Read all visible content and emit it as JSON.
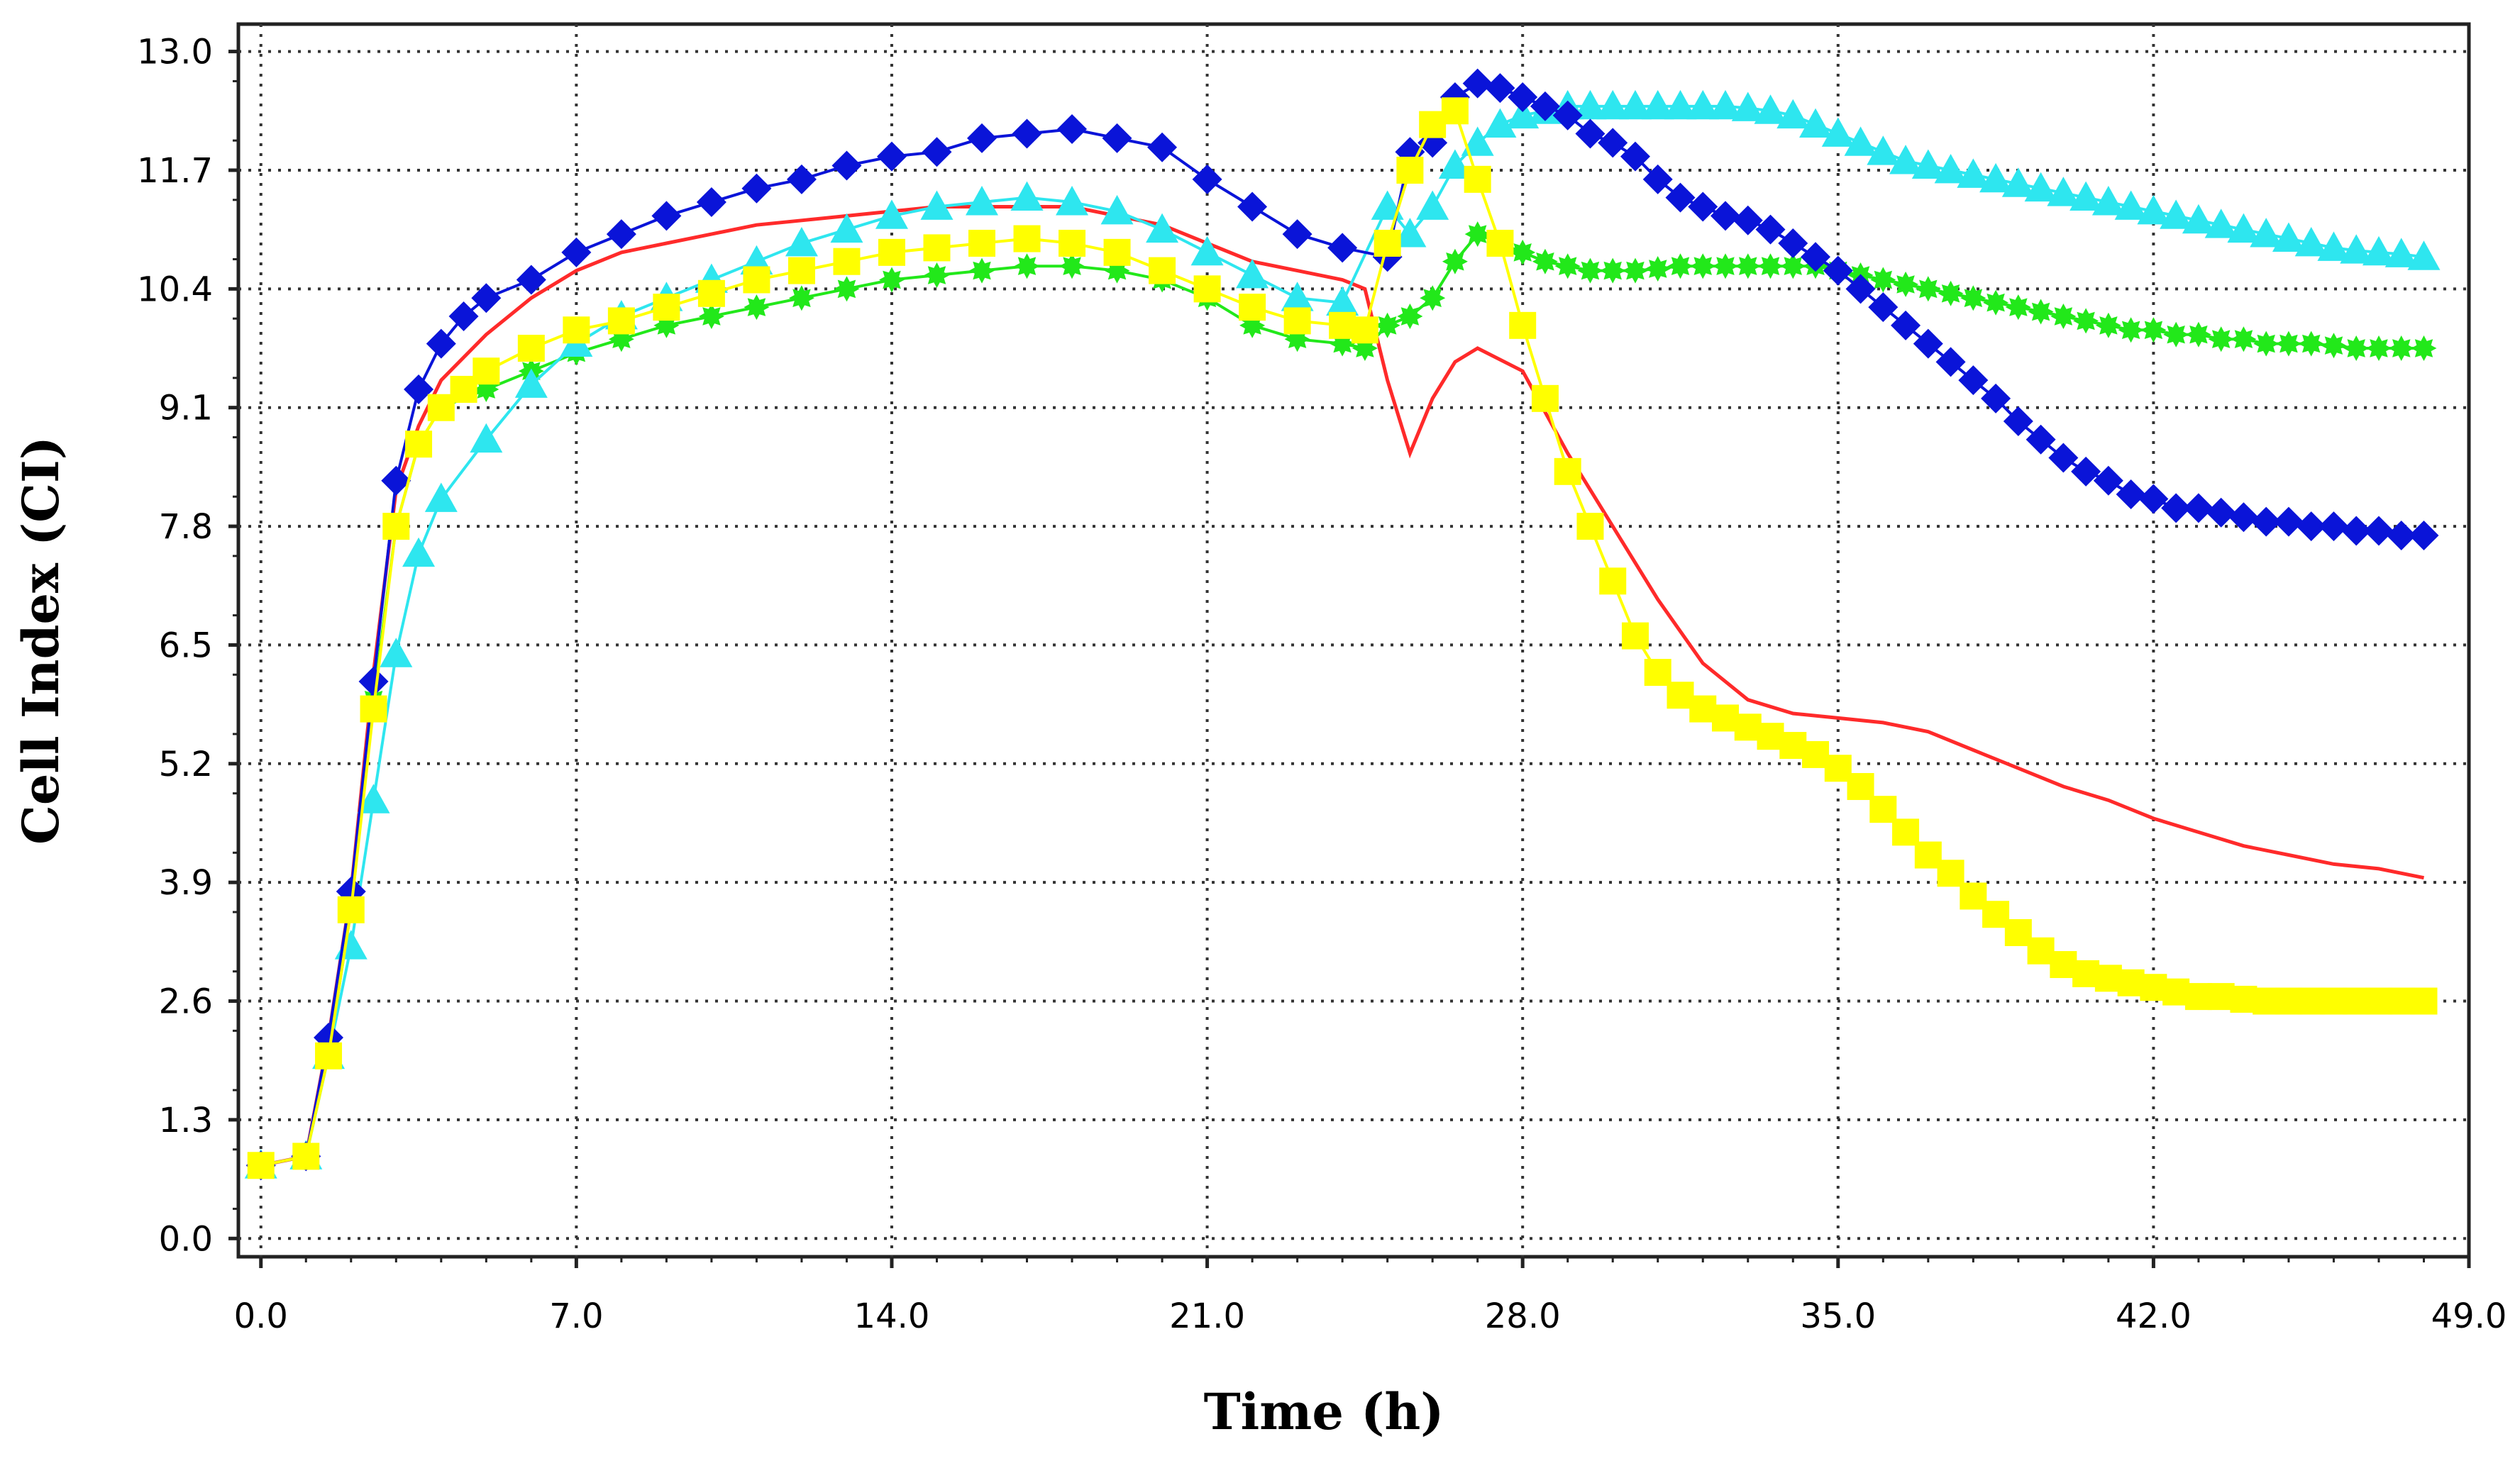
{
  "chart_data": {
    "type": "line",
    "title": "",
    "xlabel": "Time (h)",
    "ylabel": "Cell Index (CI)",
    "xlim": [
      -0.5,
      49.0
    ],
    "ylim": [
      -0.2,
      13.3
    ],
    "xticks": [
      0.0,
      7.0,
      14.0,
      21.0,
      28.0,
      35.0,
      42.0,
      49.0
    ],
    "xtick_labels": [
      "0.0",
      "7.0",
      "14.0",
      "21.0",
      "28.0",
      "35.0",
      "42.0",
      "49.0"
    ],
    "yticks": [
      0.0,
      1.3,
      2.6,
      3.9,
      5.2,
      6.5,
      7.8,
      9.1,
      10.4,
      11.7,
      13.0
    ],
    "ytick_labels": [
      "0.0",
      "1.3",
      "2.6",
      "3.9",
      "5.2",
      "6.5",
      "7.8",
      "9.1",
      "10.4",
      "11.7",
      "13.0"
    ],
    "grid": true,
    "legend": "none",
    "series": [
      {
        "name": "red",
        "color": "#ff2a2a",
        "marker": "none",
        "x": [
          0.0,
          1.0,
          1.5,
          2.0,
          2.5,
          3.0,
          3.5,
          4.0,
          5.0,
          6.0,
          7.0,
          8.0,
          9.0,
          10.0,
          11.0,
          12.0,
          13.0,
          14.0,
          15.0,
          16.0,
          17.0,
          18.0,
          19.0,
          20.0,
          21.0,
          22.0,
          23.0,
          24.0,
          24.5,
          25.0,
          25.5,
          26.0,
          26.5,
          27.0,
          28.0,
          29.0,
          30.0,
          31.0,
          32.0,
          33.0,
          34.0,
          35.0,
          36.0,
          37.0,
          38.0,
          39.0,
          40.0,
          41.0,
          42.0,
          43.0,
          44.0,
          45.0,
          46.0,
          47.0,
          48.0
        ],
        "y": [
          0.8,
          0.9,
          2.2,
          3.8,
          6.2,
          8.2,
          8.9,
          9.4,
          9.9,
          10.3,
          10.6,
          10.8,
          10.9,
          11.0,
          11.1,
          11.15,
          11.2,
          11.25,
          11.3,
          11.3,
          11.3,
          11.3,
          11.2,
          11.1,
          10.9,
          10.7,
          10.6,
          10.5,
          10.4,
          9.4,
          8.6,
          9.2,
          9.6,
          9.75,
          9.5,
          8.6,
          7.8,
          7.0,
          6.3,
          5.9,
          5.75,
          5.7,
          5.65,
          5.55,
          5.35,
          5.15,
          4.95,
          4.8,
          4.6,
          4.45,
          4.3,
          4.2,
          4.1,
          4.05,
          3.95
        ]
      },
      {
        "name": "blue",
        "color": "#0a14d8",
        "marker": "diamond",
        "x": [
          0.0,
          1.0,
          1.5,
          2.0,
          2.5,
          3.0,
          3.5,
          4.0,
          4.5,
          5.0,
          6.0,
          7.0,
          8.0,
          9.0,
          10.0,
          11.0,
          12.0,
          13.0,
          14.0,
          15.0,
          16.0,
          17.0,
          18.0,
          19.0,
          20.0,
          21.0,
          22.0,
          23.0,
          24.0,
          25.0,
          25.5,
          26.0,
          26.5,
          27.0,
          27.5,
          28.0,
          28.5,
          29.0,
          29.5,
          30.0,
          30.5,
          31.0,
          31.5,
          32.0,
          32.5,
          33.0,
          33.5,
          34.0,
          34.5,
          35.0,
          35.5,
          36.0,
          36.5,
          37.0,
          37.5,
          38.0,
          38.5,
          39.0,
          39.5,
          40.0,
          40.5,
          41.0,
          41.5,
          42.0,
          42.5,
          43.0,
          43.5,
          44.0,
          44.5,
          45.0,
          45.5,
          46.0,
          46.5,
          47.0,
          47.5,
          48.0
        ],
        "y": [
          0.8,
          0.9,
          2.2,
          3.8,
          6.1,
          8.3,
          9.3,
          9.8,
          10.1,
          10.3,
          10.5,
          10.8,
          11.0,
          11.2,
          11.35,
          11.5,
          11.6,
          11.75,
          11.85,
          11.9,
          12.05,
          12.1,
          12.15,
          12.05,
          11.95,
          11.6,
          11.3,
          11.0,
          10.85,
          10.75,
          11.9,
          12.0,
          12.5,
          12.65,
          12.6,
          12.5,
          12.4,
          12.3,
          12.1,
          12.0,
          11.85,
          11.6,
          11.4,
          11.3,
          11.2,
          11.15,
          11.05,
          10.9,
          10.75,
          10.6,
          10.4,
          10.2,
          10.0,
          9.8,
          9.6,
          9.4,
          9.2,
          8.95,
          8.75,
          8.55,
          8.4,
          8.3,
          8.15,
          8.1,
          8.0,
          8.0,
          7.95,
          7.9,
          7.85,
          7.85,
          7.8,
          7.8,
          7.75,
          7.75,
          7.7,
          7.7
        ]
      },
      {
        "name": "green",
        "color": "#22e81a",
        "marker": "star",
        "x": [
          0.0,
          1.0,
          1.5,
          2.0,
          2.5,
          3.0,
          3.5,
          4.0,
          5.0,
          6.0,
          7.0,
          8.0,
          9.0,
          10.0,
          11.0,
          12.0,
          13.0,
          14.0,
          15.0,
          16.0,
          17.0,
          18.0,
          19.0,
          20.0,
          21.0,
          22.0,
          23.0,
          24.0,
          24.5,
          25.0,
          25.5,
          26.0,
          26.5,
          27.0,
          27.5,
          28.0,
          28.5,
          29.0,
          29.5,
          30.0,
          30.5,
          31.0,
          31.5,
          32.0,
          32.5,
          33.0,
          33.5,
          34.0,
          34.5,
          35.0,
          35.5,
          36.0,
          36.5,
          37.0,
          37.5,
          38.0,
          38.5,
          39.0,
          39.5,
          40.0,
          40.5,
          41.0,
          41.5,
          42.0,
          42.5,
          43.0,
          43.5,
          44.0,
          44.5,
          45.0,
          45.5,
          46.0,
          46.5,
          47.0,
          47.5,
          48.0
        ],
        "y": [
          0.8,
          0.9,
          2.0,
          3.6,
          5.9,
          7.8,
          8.7,
          9.1,
          9.3,
          9.5,
          9.7,
          9.85,
          10.0,
          10.1,
          10.2,
          10.3,
          10.4,
          10.5,
          10.55,
          10.6,
          10.65,
          10.65,
          10.6,
          10.5,
          10.3,
          10.0,
          9.85,
          9.8,
          9.75,
          10.0,
          10.1,
          10.3,
          10.7,
          11.0,
          10.9,
          10.8,
          10.7,
          10.65,
          10.6,
          10.6,
          10.6,
          10.62,
          10.65,
          10.65,
          10.65,
          10.65,
          10.65,
          10.65,
          10.65,
          10.6,
          10.55,
          10.5,
          10.45,
          10.4,
          10.35,
          10.3,
          10.25,
          10.2,
          10.15,
          10.1,
          10.05,
          10.0,
          9.95,
          9.95,
          9.9,
          9.9,
          9.85,
          9.85,
          9.8,
          9.8,
          9.8,
          9.78,
          9.75,
          9.75,
          9.75,
          9.75
        ]
      },
      {
        "name": "yellow",
        "color": "#ffff00",
        "marker": "square",
        "x": [
          0.0,
          1.0,
          1.5,
          2.0,
          2.5,
          3.0,
          3.5,
          4.0,
          4.5,
          5.0,
          6.0,
          7.0,
          8.0,
          9.0,
          10.0,
          11.0,
          12.0,
          13.0,
          14.0,
          15.0,
          16.0,
          17.0,
          18.0,
          19.0,
          20.0,
          21.0,
          22.0,
          23.0,
          24.0,
          24.5,
          25.0,
          25.5,
          26.0,
          26.5,
          27.0,
          27.5,
          28.0,
          28.5,
          29.0,
          29.5,
          30.0,
          30.5,
          31.0,
          31.5,
          32.0,
          32.5,
          33.0,
          33.5,
          34.0,
          34.5,
          35.0,
          35.5,
          36.0,
          36.5,
          37.0,
          37.5,
          38.0,
          38.5,
          39.0,
          39.5,
          40.0,
          40.5,
          41.0,
          41.5,
          42.0,
          42.5,
          43.0,
          43.5,
          44.0,
          44.5,
          45.0,
          45.5,
          46.0,
          46.5,
          47.0,
          47.5,
          48.0
        ],
        "y": [
          0.8,
          0.9,
          2.0,
          3.6,
          5.8,
          7.8,
          8.7,
          9.1,
          9.3,
          9.5,
          9.75,
          9.95,
          10.05,
          10.2,
          10.35,
          10.5,
          10.6,
          10.7,
          10.8,
          10.85,
          10.9,
          10.95,
          10.9,
          10.8,
          10.6,
          10.4,
          10.2,
          10.05,
          10.0,
          9.95,
          10.9,
          11.7,
          12.2,
          12.35,
          11.6,
          10.9,
          10.0,
          9.2,
          8.4,
          7.8,
          7.2,
          6.6,
          6.2,
          5.95,
          5.8,
          5.7,
          5.6,
          5.5,
          5.4,
          5.3,
          5.15,
          4.95,
          4.7,
          4.45,
          4.2,
          4.0,
          3.75,
          3.55,
          3.35,
          3.15,
          3.0,
          2.9,
          2.85,
          2.8,
          2.75,
          2.7,
          2.65,
          2.65,
          2.62,
          2.6,
          2.6,
          2.6,
          2.6,
          2.6,
          2.6,
          2.6,
          2.6
        ]
      },
      {
        "name": "cyan",
        "color": "#2ee6ef",
        "marker": "triangle",
        "x": [
          0.0,
          1.0,
          1.5,
          2.0,
          2.5,
          3.0,
          3.5,
          4.0,
          5.0,
          6.0,
          7.0,
          8.0,
          9.0,
          10.0,
          11.0,
          12.0,
          13.0,
          14.0,
          15.0,
          16.0,
          17.0,
          18.0,
          19.0,
          20.0,
          21.0,
          22.0,
          23.0,
          24.0,
          25.0,
          25.5,
          26.0,
          26.5,
          27.0,
          27.5,
          28.0,
          28.5,
          29.0,
          29.5,
          30.0,
          30.5,
          31.0,
          31.5,
          32.0,
          32.5,
          33.0,
          33.5,
          34.0,
          34.5,
          35.0,
          35.5,
          36.0,
          36.5,
          37.0,
          37.5,
          38.0,
          38.5,
          39.0,
          39.5,
          40.0,
          40.5,
          41.0,
          41.5,
          42.0,
          42.5,
          43.0,
          43.5,
          44.0,
          44.5,
          45.0,
          45.5,
          46.0,
          46.5,
          47.0,
          47.5,
          48.0
        ],
        "y": [
          0.8,
          0.9,
          2.0,
          3.2,
          4.8,
          6.4,
          7.5,
          8.1,
          8.75,
          9.35,
          9.8,
          10.1,
          10.3,
          10.5,
          10.7,
          10.9,
          11.05,
          11.2,
          11.3,
          11.35,
          11.4,
          11.35,
          11.25,
          11.05,
          10.8,
          10.55,
          10.3,
          10.25,
          11.3,
          11.0,
          11.3,
          11.75,
          12.0,
          12.2,
          12.3,
          12.35,
          12.4,
          12.4,
          12.4,
          12.4,
          12.4,
          12.4,
          12.4,
          12.4,
          12.38,
          12.35,
          12.3,
          12.2,
          12.1,
          12.0,
          11.9,
          11.8,
          11.75,
          11.7,
          11.65,
          11.6,
          11.55,
          11.5,
          11.45,
          11.4,
          11.35,
          11.3,
          11.25,
          11.2,
          11.15,
          11.1,
          11.05,
          11.0,
          10.95,
          10.9,
          10.85,
          10.82,
          10.8,
          10.78,
          10.75
        ]
      }
    ]
  }
}
